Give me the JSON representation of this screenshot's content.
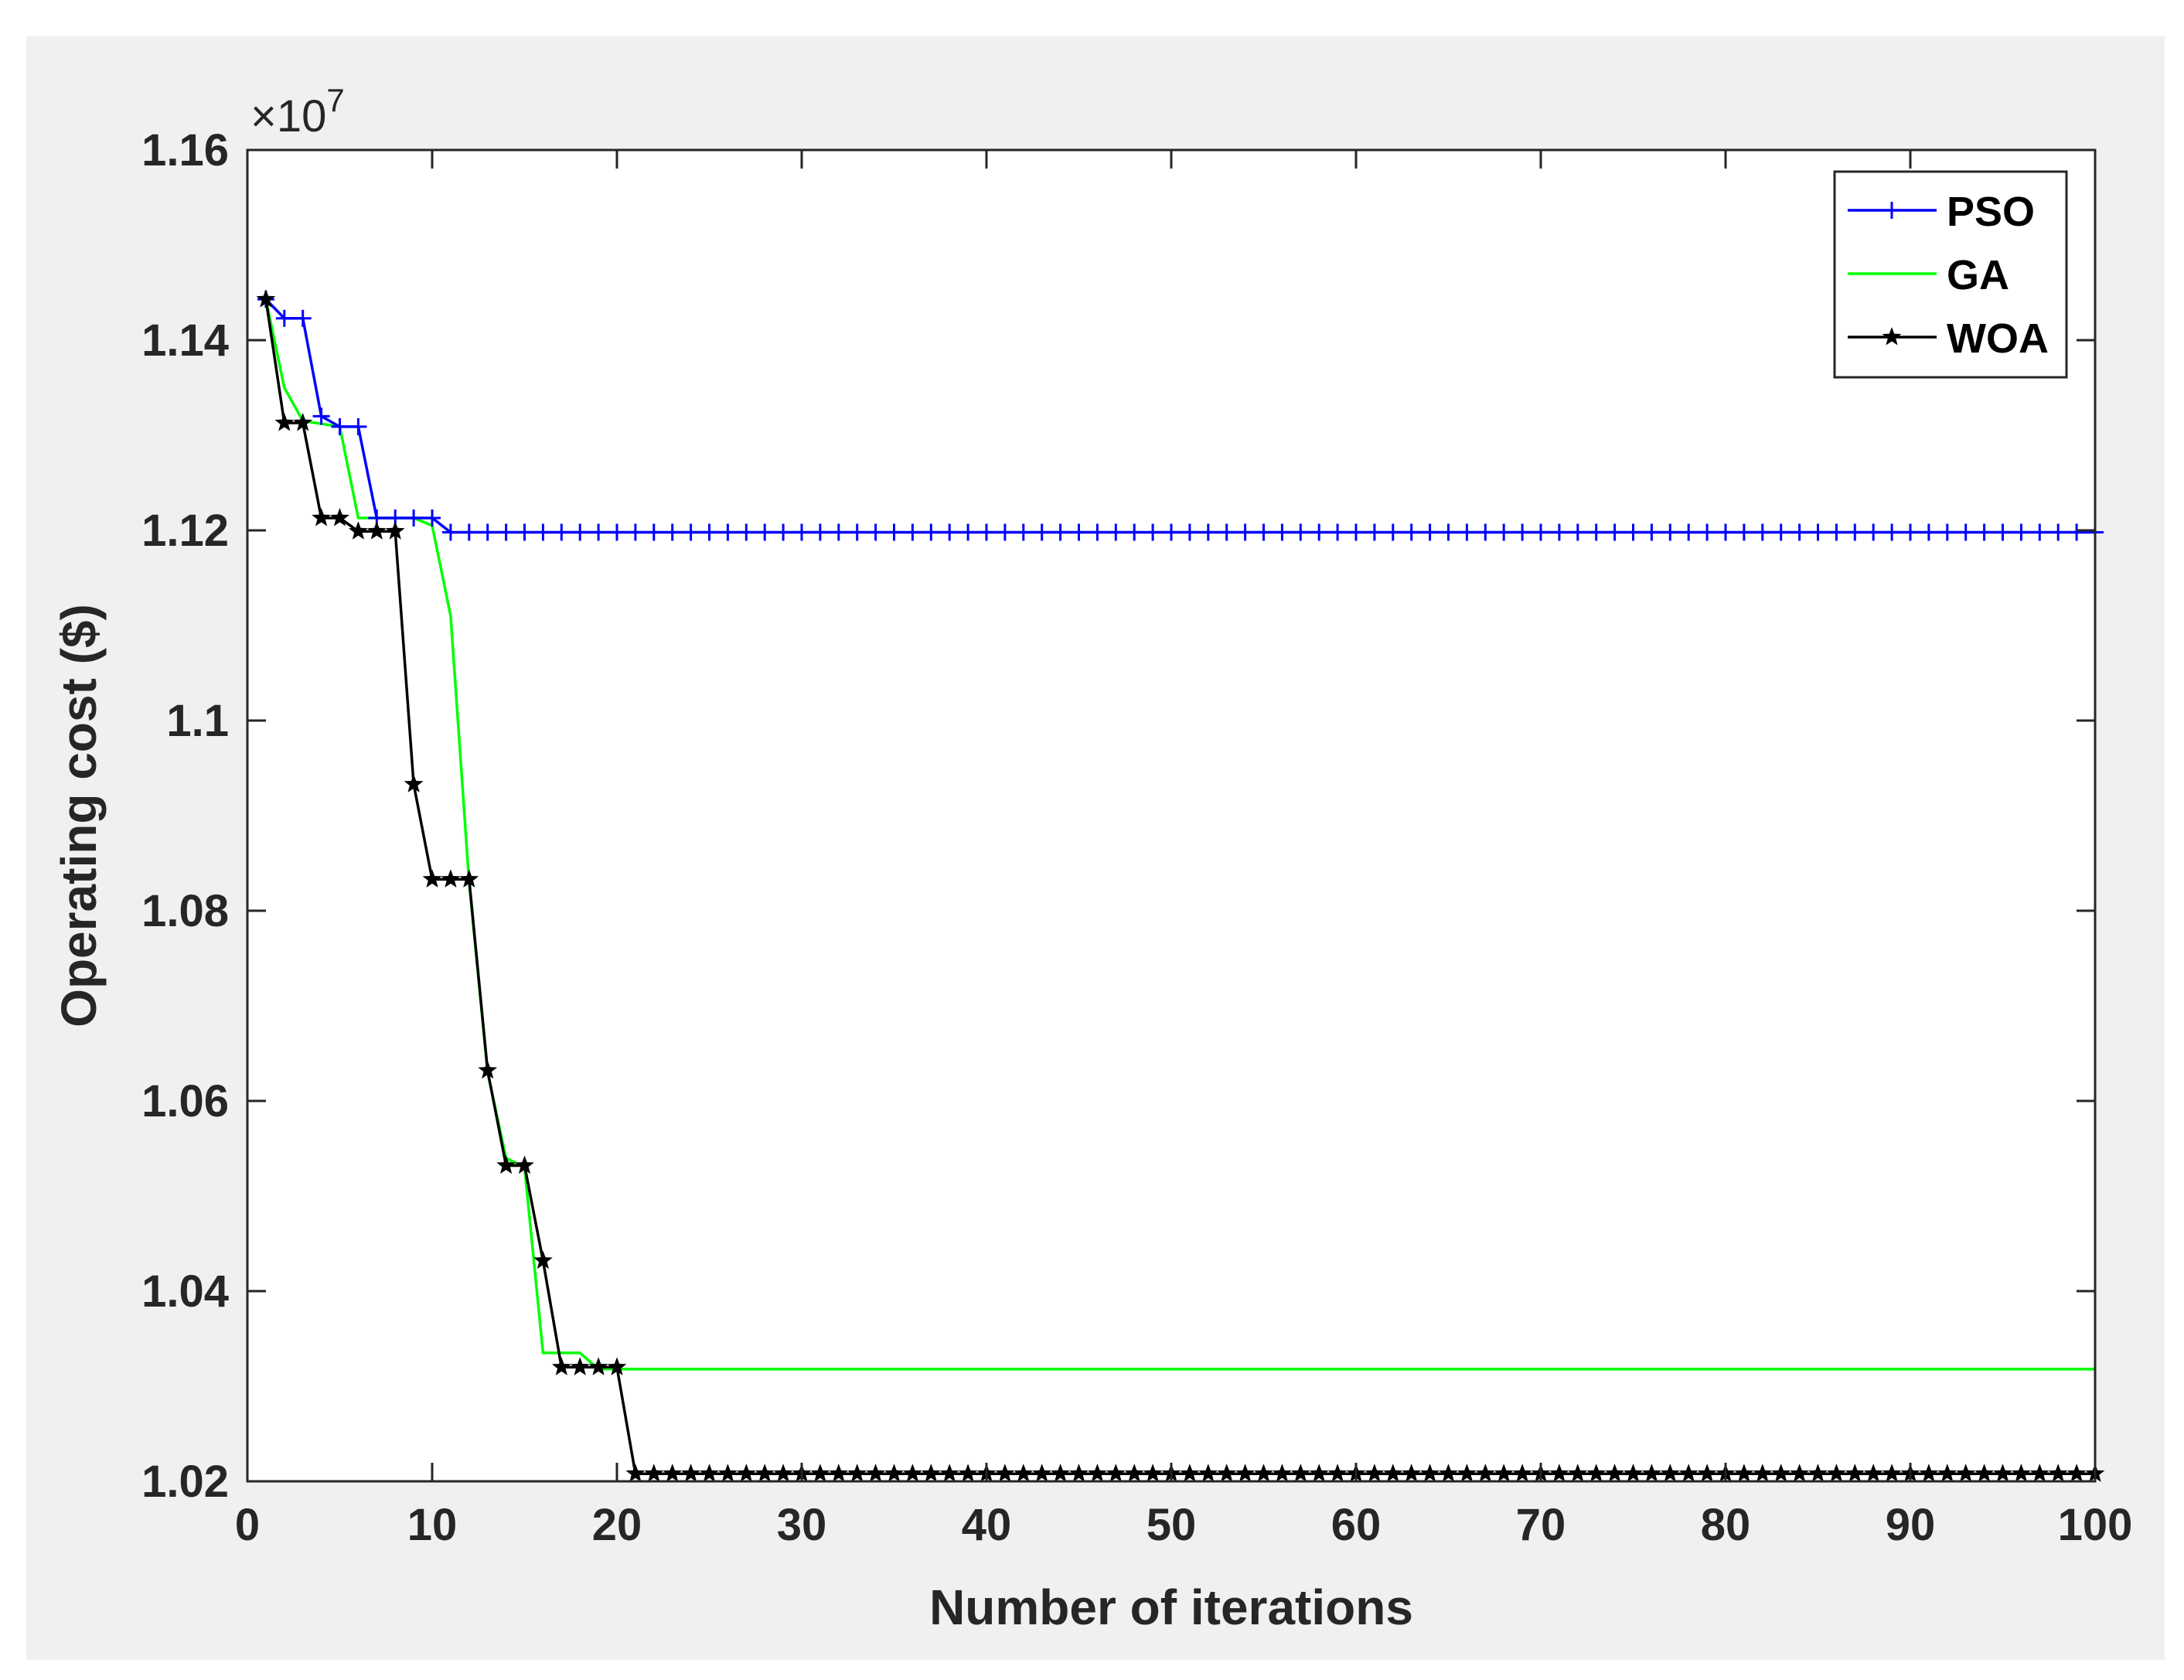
{
  "chart_data": {
    "type": "line",
    "title": "",
    "xlabel": "Number of iterations",
    "ylabel": "Operating cost ($)",
    "y_exponent_label": "×10",
    "y_exponent_power": "7",
    "xlim": [
      0,
      100
    ],
    "ylim": [
      1.02,
      1.16
    ],
    "x_ticks": [
      0,
      10,
      20,
      30,
      40,
      50,
      60,
      70,
      80,
      90,
      100
    ],
    "x_tick_labels": [
      "0",
      "10",
      "20",
      "30",
      "40",
      "50",
      "60",
      "70",
      "80",
      "90",
      "100"
    ],
    "y_ticks": [
      1.02,
      1.04,
      1.06,
      1.08,
      1.1,
      1.12,
      1.14,
      1.16
    ],
    "y_tick_labels": [
      "1.02",
      "1.04",
      "1.06",
      "1.08",
      "1.1",
      "1.12",
      "1.14",
      "1.16"
    ],
    "grid": false,
    "legend_position": "top-right",
    "series": [
      {
        "name": "PSO",
        "color": "#0000ff",
        "marker": "plus",
        "points": [
          [
            1,
            1.1443
          ],
          [
            2,
            1.1423
          ],
          [
            3,
            1.1423
          ],
          [
            4,
            1.132
          ],
          [
            5,
            1.1309
          ],
          [
            6,
            1.1309
          ],
          [
            7,
            1.1213
          ],
          [
            8,
            1.1213
          ],
          [
            9,
            1.1213
          ],
          [
            10,
            1.1213
          ],
          [
            11,
            1.1198
          ],
          [
            100,
            1.1198
          ]
        ]
      },
      {
        "name": "GA",
        "color": "#00ff00",
        "marker": "none",
        "points": [
          [
            1,
            1.1443
          ],
          [
            2,
            1.135
          ],
          [
            3,
            1.1315
          ],
          [
            4,
            1.1312
          ],
          [
            5,
            1.1309
          ],
          [
            6,
            1.1213
          ],
          [
            7,
            1.1213
          ],
          [
            8,
            1.1213
          ],
          [
            9,
            1.1213
          ],
          [
            10,
            1.1205
          ],
          [
            11,
            1.111
          ],
          [
            12,
            1.083
          ],
          [
            13,
            1.063
          ],
          [
            14,
            1.054
          ],
          [
            15,
            1.053
          ],
          [
            16,
            1.0335
          ],
          [
            17,
            1.0335
          ],
          [
            18,
            1.0335
          ],
          [
            19,
            1.0318
          ],
          [
            100,
            1.0318
          ]
        ]
      },
      {
        "name": "WOA",
        "color": "#000000",
        "marker": "star",
        "points": [
          [
            1,
            1.1443
          ],
          [
            2,
            1.1313
          ],
          [
            3,
            1.1313
          ],
          [
            4,
            1.1213
          ],
          [
            5,
            1.1213
          ],
          [
            6,
            1.1199
          ],
          [
            7,
            1.1199
          ],
          [
            8,
            1.1199
          ],
          [
            9,
            1.0933
          ],
          [
            10,
            1.0833
          ],
          [
            11,
            1.0833
          ],
          [
            12,
            1.0833
          ],
          [
            13,
            1.0632
          ],
          [
            14,
            1.0532
          ],
          [
            15,
            1.0532
          ],
          [
            16,
            1.0432
          ],
          [
            17,
            1.032
          ],
          [
            18,
            1.032
          ],
          [
            19,
            1.032
          ],
          [
            20,
            1.032
          ],
          [
            21,
            1.0208
          ],
          [
            100,
            1.0208
          ]
        ]
      }
    ]
  }
}
